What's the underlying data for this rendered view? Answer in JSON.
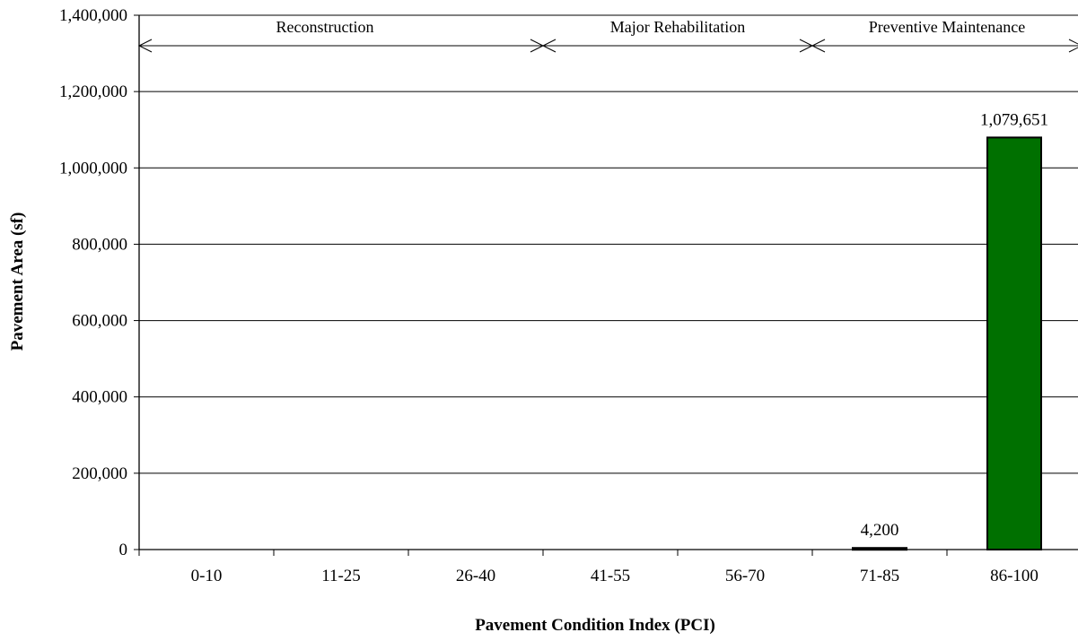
{
  "chart_data": {
    "type": "bar",
    "xlabel": "Pavement Condition Index (PCI)",
    "ylabel": "Pavement Area (sf)",
    "categories": [
      "0-10",
      "11-25",
      "26-40",
      "41-55",
      "56-70",
      "71-85",
      "86-100"
    ],
    "values": [
      0,
      0,
      0,
      0,
      0,
      4200,
      1079651
    ],
    "data_labels": [
      "",
      "",
      "",
      "",
      "",
      "4,200",
      "1,079,651"
    ],
    "ylim": [
      0,
      1400000
    ],
    "yticks": [
      0,
      200000,
      400000,
      600000,
      800000,
      1000000,
      1200000,
      1400000
    ],
    "ytick_labels": [
      "0",
      "200,000",
      "400,000",
      "600,000",
      "800,000",
      "1,000,000",
      "1,200,000",
      "1,400,000"
    ],
    "grid": true,
    "bar_color": "#007000",
    "treatment_ranges": [
      {
        "label": "Reconstruction",
        "from_category": 0,
        "to_category": 2
      },
      {
        "label": "Major Rehabilitation",
        "from_category": 3,
        "to_category": 4
      },
      {
        "label": "Preventive Maintenance",
        "from_category": 5,
        "to_category": 6
      }
    ]
  }
}
